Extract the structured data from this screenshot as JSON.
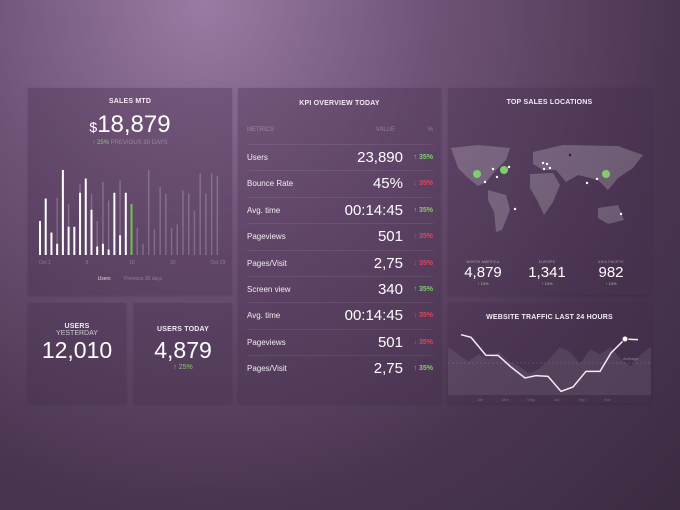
{
  "sales": {
    "title": "SALES MTD",
    "currency": "$",
    "value": "18,879",
    "change": "↑ 25%",
    "change_label": "PREVIOUS 30 DAYS",
    "chart_data": {
      "type": "bar",
      "categories_labels": [
        "Oct 1",
        "8",
        "15",
        "22",
        "Oct 29"
      ],
      "series": [
        {
          "name": "Users",
          "values": [
            100,
            166,
            66,
            33,
            250,
            83,
            83,
            183,
            225,
            133,
            25,
            33,
            16,
            183,
            58,
            183,
            150
          ]
        },
        {
          "name": "Previous 30 days",
          "values": [
            80,
            120,
            60,
            168,
            100,
            150,
            40,
            208,
            60,
            180,
            100,
            215,
            160,
            110,
            220,
            140,
            60,
            80,
            33,
            250,
            75,
            200,
            180,
            80,
            90,
            190,
            180,
            130,
            240,
            180,
            240,
            233
          ]
        }
      ],
      "highlight_color": "#6fc24f",
      "legend": "bottom"
    }
  },
  "users_yesterday": {
    "title": "USERS",
    "subtitle": "YESTERDAY",
    "value": "12,010"
  },
  "users_today": {
    "title": "USERS TODAY",
    "value": "4,879",
    "change": "↑ 25%"
  },
  "kpi": {
    "title": "KPI OVERVIEW TODAY",
    "headers": [
      "METRICS",
      "VALUE",
      "%"
    ],
    "rows": [
      {
        "metric": "Users",
        "value": "23,890",
        "change": "↑ 35%",
        "dir": "up"
      },
      {
        "metric": "Bounce Rate",
        "value": "45%",
        "change": "↓ 35%",
        "dir": "dn"
      },
      {
        "metric": "Avg. time",
        "value": "00:14:45",
        "change": "↑ 35%",
        "dir": "up"
      },
      {
        "metric": "Pageviews",
        "value": "501",
        "change": "↓ 35%",
        "dir": "dn"
      },
      {
        "metric": "Pages/Visit",
        "value": "2,75",
        "change": "↓ 35%",
        "dir": "dn"
      },
      {
        "metric": "Screen view",
        "value": "340",
        "change": "↑ 35%",
        "dir": "up"
      },
      {
        "metric": "Avg. time",
        "value": "00:14:45",
        "change": "↓ 35%",
        "dir": "dn"
      },
      {
        "metric": "Pageviews",
        "value": "501",
        "change": "↓ 35%",
        "dir": "dn"
      },
      {
        "metric": "Pages/Visit",
        "value": "2,75",
        "change": "↑ 35%",
        "dir": "up"
      }
    ]
  },
  "map": {
    "title": "TOP SALES LOCATIONS",
    "regions": [
      {
        "label": "NORTH AMERICA",
        "value": "4,879",
        "change": "↑ 15%"
      },
      {
        "label": "EUROPE",
        "value": "1,341",
        "change": "↑ 15%"
      },
      {
        "label": "ASIA PACIFIC",
        "value": "982",
        "change": "↑ 15%"
      }
    ]
  },
  "traffic": {
    "title": "WEBSITE TRAFFIC LAST 24 HOURS",
    "average_label": "Average",
    "chart_data": {
      "type": "line",
      "x_labels": [
        "Jan",
        "Mar",
        "May",
        "Jul",
        "Sep",
        "Nov"
      ],
      "values": [
        205,
        197,
        143,
        143,
        108,
        75,
        82,
        80,
        35,
        48,
        95,
        95,
        150,
        192,
        190
      ],
      "background_values": [
        200,
        170,
        140,
        170,
        150,
        180,
        140,
        120,
        90,
        110,
        150,
        200,
        180,
        130,
        190,
        170,
        200,
        150,
        120,
        170,
        200
      ]
    }
  },
  "colors": {
    "up": "#7ecf6a",
    "down": "#e0455a",
    "accent": "#6fc24f"
  }
}
